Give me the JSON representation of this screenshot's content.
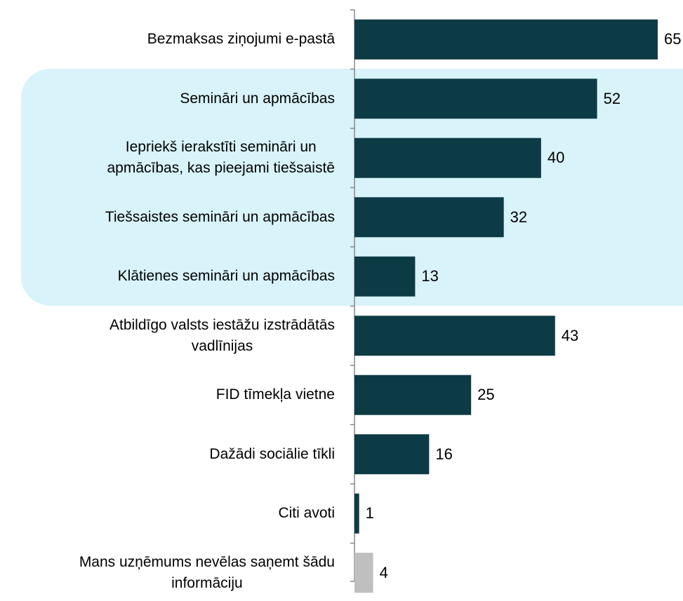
{
  "chart_data": {
    "type": "bar",
    "orientation": "horizontal",
    "categories": [
      "Bezmaksas ziņojumi e-pastā",
      "Semināri un apmācības",
      "Iepriekš ierakstīti semināri un\napmācības, kas pieejami tiešsaistē",
      "Tiešsaistes semināri un apmācības",
      "Klātienes semināri un apmācības",
      "Atbildīgo valsts iestāžu izstrādātās\nvadlīnijas",
      "FID tīmekļa vietne",
      "Dažādi sociālie tīkli",
      "Citi avoti",
      "Mans uzņēmums nevēlas saņemt šādu\ninformāciju"
    ],
    "values": [
      65,
      52,
      40,
      32,
      13,
      43,
      25,
      16,
      1,
      4
    ],
    "colors": [
      "#0d3b45",
      "#0d3b45",
      "#0d3b45",
      "#0d3b45",
      "#0d3b45",
      "#0d3b45",
      "#0d3b45",
      "#0d3b45",
      "#0d3b45",
      "#bfbfbf"
    ]
  }
}
